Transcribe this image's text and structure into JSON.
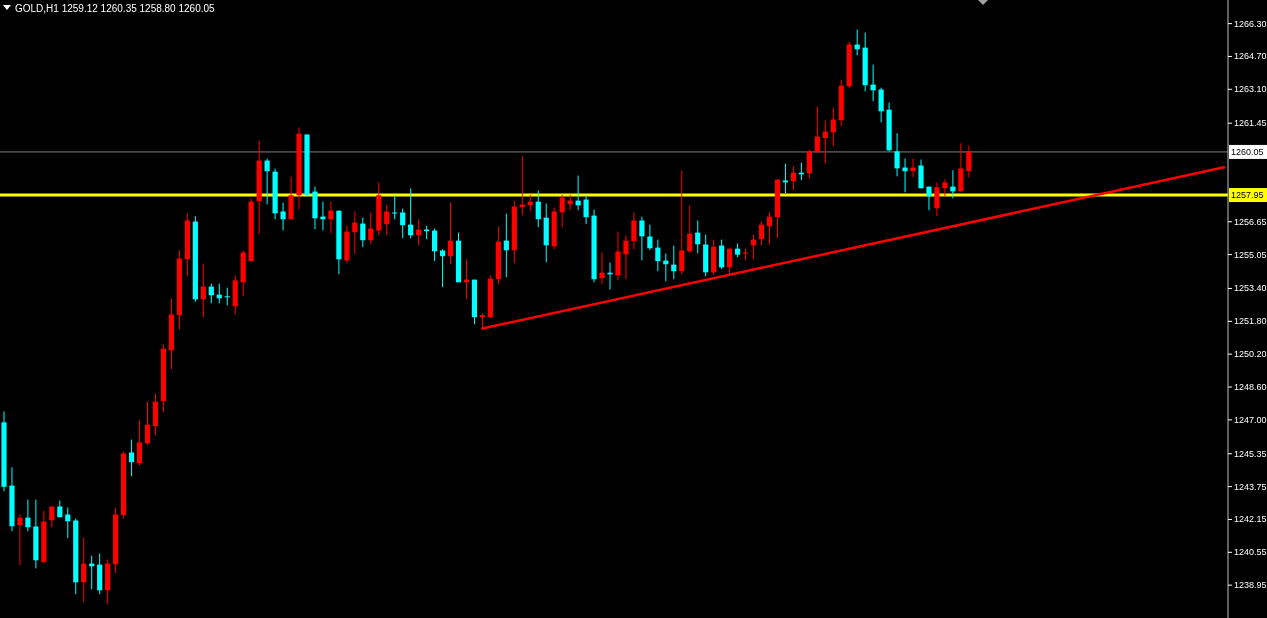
{
  "chart_data": {
    "type": "candlestick",
    "title": "GOLD,H1  1259.12 1260.35 1258.80 1260.05",
    "categories": [
      null,
      null,
      null,
      null,
      null,
      null,
      null,
      null,
      null,
      null,
      null,
      null,
      null,
      null,
      null,
      null,
      null,
      null,
      null,
      null,
      null,
      null,
      null,
      null,
      null,
      null,
      null,
      null,
      null,
      null,
      null,
      null,
      null,
      null,
      null,
      null,
      null,
      null,
      null,
      null,
      null,
      null,
      null,
      null,
      null,
      null,
      null,
      null,
      null,
      null,
      null,
      null,
      null,
      null,
      null,
      null,
      null,
      null,
      null,
      null,
      null,
      null,
      null,
      null,
      null,
      null,
      null,
      null,
      null,
      null,
      null,
      null,
      null,
      null,
      null,
      null,
      null,
      null,
      null,
      null,
      null,
      null,
      null,
      null,
      null,
      null,
      null,
      null,
      null,
      null,
      null,
      null,
      null,
      null,
      null,
      null,
      null,
      null,
      null,
      null,
      null,
      null,
      null,
      null,
      null,
      null,
      null,
      null,
      null,
      null,
      null,
      null,
      null,
      null,
      null,
      null,
      null,
      null,
      null,
      null,
      null,
      null,
      null,
      null,
      null,
      null,
      null,
      null,
      null,
      null,
      null,
      null,
      null,
      null,
      null,
      null,
      null,
      null,
      null,
      null,
      null,
      null,
      null,
      null,
      null,
      null,
      null,
      null,
      null,
      null,
      null,
      null,
      null,
      null
    ],
    "ylim": [
      1237.35,
      1267.45
    ],
    "yticks": [
      {
        "value": 1266.3,
        "label": "1266.30"
      },
      {
        "value": 1264.7,
        "label": "1264.70"
      },
      {
        "value": 1263.1,
        "label": "1263.10"
      },
      {
        "value": 1261.45,
        "label": "1261.45"
      },
      {
        "value": 1256.65,
        "label": "1256.65"
      },
      {
        "value": 1255.05,
        "label": "1255.05"
      },
      {
        "value": 1253.4,
        "label": "1253.40"
      },
      {
        "value": 1251.8,
        "label": "1251.80"
      },
      {
        "value": 1250.2,
        "label": "1250.20"
      },
      {
        "value": 1248.6,
        "label": "1248.60"
      },
      {
        "value": 1247,
        "label": "1247.00"
      },
      {
        "value": 1245.35,
        "label": "1245.35"
      },
      {
        "value": 1243.75,
        "label": "1243.75"
      },
      {
        "value": 1242.15,
        "label": "1242.15"
      },
      {
        "value": 1240.55,
        "label": "1240.55"
      },
      {
        "value": 1238.95,
        "label": "1238.95"
      }
    ],
    "tick_labels": "y",
    "ref_lines": [
      {
        "axis": "y",
        "value": 1260.05,
        "label": "1260.05",
        "color": "#808080"
      },
      {
        "axis": "y",
        "value": 1257.95,
        "label": "1257.95",
        "color": "#ffff00"
      }
    ],
    "series": [
      {
        "colors": [
          "#00ffff",
          "#00ffff",
          "#ff0000",
          "#00ffff",
          "#00ffff",
          "#ff0000",
          "#ff0000",
          "#00ffff",
          "#00ffff",
          "#00ffff",
          "#ff0000",
          "#00ffff",
          "#00ffff",
          "#ff0000",
          "#ff0000",
          "#ff0000",
          "#00ffff",
          "#ff0000",
          "#ff0000",
          "#ff0000",
          "#ff0000",
          "#ff0000",
          "#ff0000",
          "#ff0000",
          "#00ffff",
          "#ff0000",
          "#00ffff",
          "#00ffff",
          "#00ffff",
          "#ff0000",
          "#ff0000",
          "#ff0000",
          "#ff0000",
          "#00ffff",
          "#00ffff",
          "#00ffff",
          "#ff0000",
          "#ff0000",
          "#00ffff",
          "#00ffff",
          "#00ffff",
          "#ff0000",
          "#00ffff",
          "#ff0000",
          "#ff0000",
          "#00ffff",
          "#ff0000",
          "#ff0000",
          "#ff0000",
          "#00ffff",
          "#00ffff",
          "#00ffff",
          "#ff0000",
          "#00ffff",
          "#00ffff",
          "#00ffff",
          "#ff0000",
          "#00ffff",
          "#ff0000",
          "#00ffff",
          "#ff0000",
          "#ff0000",
          "#ff0000",
          "#00ffff",
          "#ff0000",
          "#ff0000",
          "#ff0000",
          "#00ffff",
          "#00ffff",
          "#ff0000",
          "#ff0000",
          "#ff0000",
          "#00ffff",
          "#00ffff",
          "#00ffff",
          "#ff0000",
          "#00ffff",
          "#ff0000",
          "#ff0000",
          "#ff0000",
          "#00ffff",
          "#00ffff",
          "#00ffff",
          "#00ffff",
          "#00ffff",
          "#ff0000",
          "#ff0000",
          "#00ffff",
          "#00ffff",
          "#ff0000",
          "#00ffff",
          "#ff0000",
          "#00ffff",
          "#ff0000",
          "#ff0000",
          "#ff0000",
          "#ff0000",
          "#ff0000",
          "#00ffff",
          "#ff0000",
          "#00ffff",
          "#ff0000",
          "#ff0000",
          "#ff0000",
          "#ff0000",
          "#ff0000",
          "#ff0000",
          "#00ffff",
          "#00ffff",
          "#00ffff",
          "#00ffff",
          "#00ffff",
          "#00ffff",
          "#00ffff",
          "#ff0000",
          "#00ffff",
          "#00ffff",
          "#ff0000",
          "#ff0000",
          "#00ffff",
          "#ff0000",
          "#ff0000",
          null,
          null,
          null,
          null,
          null,
          null,
          null,
          null,
          null,
          null,
          null,
          null,
          null,
          null,
          null,
          null,
          null,
          null,
          null,
          null,
          null,
          null,
          null,
          null,
          null,
          null,
          null,
          null,
          null,
          null,
          null,
          null
        ],
        "ohlc": [
          [
            1246.88,
            1247.41,
            1243.52,
            1243.74
          ],
          [
            1243.8,
            1244.69,
            1241.58,
            1241.82
          ],
          [
            1241.87,
            1242.39,
            1239.92,
            1242.24
          ],
          [
            1242.24,
            1243.12,
            1241.58,
            1241.77
          ],
          [
            1241.81,
            1243.12,
            1239.77,
            1240.16
          ],
          [
            1240.07,
            1242.58,
            1240.02,
            1242.05
          ],
          [
            1242.11,
            1242.78,
            1241.77,
            1242.78
          ],
          [
            1242.78,
            1243.07,
            1242.26,
            1242.26
          ],
          [
            1242.39,
            1242.73,
            1241.24,
            1242.06
          ],
          [
            1242.1,
            1242.19,
            1238.51,
            1239.09
          ],
          [
            1239.09,
            1241.27,
            1238.12,
            1240.0
          ],
          [
            1240.0,
            1240.39,
            1238.75,
            1239.87
          ],
          [
            1239.95,
            1240.49,
            1238.51,
            1238.7
          ],
          [
            1238.7,
            1240.2,
            1238.02,
            1240.0
          ],
          [
            1239.97,
            1242.73,
            1239.53,
            1242.39
          ],
          [
            1242.36,
            1245.46,
            1242.21,
            1245.36
          ],
          [
            1245.41,
            1246.04,
            1244.25,
            1244.94
          ],
          [
            1244.89,
            1246.97,
            1244.79,
            1245.9
          ],
          [
            1245.86,
            1247.89,
            1245.8,
            1246.77
          ],
          [
            1246.69,
            1248.28,
            1246.25,
            1247.89
          ],
          [
            1247.91,
            1250.67,
            1247.37,
            1250.47
          ],
          [
            1250.39,
            1252.91,
            1249.47,
            1252.13
          ],
          [
            1252.1,
            1255.25,
            1251.41,
            1254.86
          ],
          [
            1254.82,
            1257.05,
            1253.99,
            1256.71
          ],
          [
            1256.66,
            1256.92,
            1252.75,
            1252.87
          ],
          [
            1252.87,
            1254.61,
            1252.0,
            1253.49
          ],
          [
            1253.49,
            1253.64,
            1252.68,
            1253.07
          ],
          [
            1253.1,
            1253.64,
            1252.68,
            1252.92
          ],
          [
            1253.02,
            1253.44,
            1252.58,
            1252.97
          ],
          [
            1252.53,
            1254.04,
            1252.14,
            1253.79
          ],
          [
            1253.7,
            1255.25,
            1253.02,
            1255.15
          ],
          [
            1254.73,
            1257.78,
            1254.68,
            1257.63
          ],
          [
            1257.65,
            1260.6,
            1256.04,
            1259.63
          ],
          [
            1259.63,
            1259.73,
            1257.5,
            1259.11
          ],
          [
            1259.09,
            1259.24,
            1256.77,
            1257.06
          ],
          [
            1257.15,
            1257.58,
            1256.23,
            1256.77
          ],
          [
            1256.77,
            1258.85,
            1256.77,
            1257.94
          ],
          [
            1257.94,
            1261.24,
            1257.26,
            1260.94
          ],
          [
            1260.9,
            1260.9,
            1257.9,
            1257.95
          ],
          [
            1258.12,
            1258.36,
            1256.28,
            1256.82
          ],
          [
            1256.9,
            1257.63,
            1256.23,
            1256.77
          ],
          [
            1256.77,
            1257.63,
            1256.09,
            1257.19
          ],
          [
            1257.19,
            1257.19,
            1254.09,
            1254.82
          ],
          [
            1254.77,
            1256.46,
            1254.63,
            1256.17
          ],
          [
            1256.14,
            1257.15,
            1255.07,
            1256.61
          ],
          [
            1256.56,
            1256.85,
            1255.41,
            1255.75
          ],
          [
            1255.75,
            1257.1,
            1255.55,
            1256.32
          ],
          [
            1256.23,
            1258.56,
            1255.99,
            1257.94
          ],
          [
            1256.53,
            1257.49,
            1255.99,
            1257.15
          ],
          [
            1257.1,
            1257.94,
            1256.77,
            1257.07
          ],
          [
            1257.1,
            1257.29,
            1255.85,
            1256.48
          ],
          [
            1256.51,
            1258.27,
            1255.85,
            1255.99
          ],
          [
            1255.99,
            1256.76,
            1255.5,
            1256.27
          ],
          [
            1256.27,
            1256.46,
            1255.8,
            1256.19
          ],
          [
            1256.22,
            1256.32,
            1254.73,
            1255.21
          ],
          [
            1255.25,
            1255.3,
            1253.46,
            1254.97
          ],
          [
            1254.97,
            1257.58,
            1254.58,
            1255.73
          ],
          [
            1255.73,
            1256.12,
            1253.7,
            1253.7
          ],
          [
            1253.7,
            1254.81,
            1252.87,
            1253.83
          ],
          [
            1253.83,
            1253.83,
            1251.66,
            1252.0
          ],
          [
            1252.0,
            1252.19,
            1251.36,
            1252.1
          ],
          [
            1252.0,
            1254.04,
            1251.95,
            1253.88
          ],
          [
            1253.85,
            1256.42,
            1253.61,
            1255.68
          ],
          [
            1255.73,
            1257.05,
            1253.95,
            1255.26
          ],
          [
            1255.26,
            1257.68,
            1254.63,
            1257.39
          ],
          [
            1257.36,
            1259.87,
            1256.97,
            1257.49
          ],
          [
            1257.45,
            1257.97,
            1257.16,
            1257.63
          ],
          [
            1257.63,
            1258.17,
            1256.38,
            1256.77
          ],
          [
            1256.85,
            1257.54,
            1254.68,
            1255.5
          ],
          [
            1255.46,
            1257.34,
            1255.31,
            1257.15
          ],
          [
            1257.11,
            1257.97,
            1256.38,
            1257.83
          ],
          [
            1257.5,
            1257.97,
            1257.21,
            1257.68
          ],
          [
            1257.68,
            1258.9,
            1257.21,
            1257.45
          ],
          [
            1257.73,
            1257.97,
            1256.53,
            1256.87
          ],
          [
            1256.95,
            1257.24,
            1253.7,
            1253.85
          ],
          [
            1253.9,
            1255.15,
            1253.61,
            1254.17
          ],
          [
            1254.17,
            1254.66,
            1253.35,
            1254.09
          ],
          [
            1254.04,
            1256.17,
            1253.8,
            1255.2
          ],
          [
            1255.07,
            1255.98,
            1253.85,
            1255.73
          ],
          [
            1255.7,
            1257.1,
            1255.31,
            1256.71
          ],
          [
            1256.71,
            1256.9,
            1254.77,
            1255.94
          ],
          [
            1255.93,
            1256.51,
            1255.26,
            1255.36
          ],
          [
            1255.39,
            1255.78,
            1254.24,
            1254.73
          ],
          [
            1254.76,
            1255.1,
            1253.75,
            1254.58
          ],
          [
            1254.56,
            1255.49,
            1253.85,
            1254.24
          ],
          [
            1254.24,
            1259.14,
            1254.09,
            1255.25
          ],
          [
            1255.21,
            1257.44,
            1255.13,
            1256.07
          ],
          [
            1256.12,
            1256.71,
            1255.11,
            1255.55
          ],
          [
            1255.54,
            1256.03,
            1253.99,
            1254.19
          ],
          [
            1254.19,
            1255.78,
            1254.06,
            1255.44
          ],
          [
            1255.49,
            1255.78,
            1254.34,
            1254.43
          ],
          [
            1254.43,
            1255.34,
            1254.09,
            1255.34
          ],
          [
            1255.34,
            1255.59,
            1254.92,
            1255.05
          ],
          [
            1255.11,
            1255.34,
            1254.77,
            1255.15
          ],
          [
            1255.5,
            1256.03,
            1254.82,
            1255.78
          ],
          [
            1255.8,
            1256.66,
            1255.5,
            1256.51
          ],
          [
            1256.43,
            1257.1,
            1255.55,
            1256.9
          ],
          [
            1256.87,
            1258.7,
            1255.85,
            1258.7
          ],
          [
            1258.66,
            1259.48,
            1258.04,
            1258.57
          ],
          [
            1258.62,
            1259.34,
            1258.18,
            1259.04
          ],
          [
            1259.04,
            1259.53,
            1258.67,
            1258.96
          ],
          [
            1259.01,
            1260.16,
            1258.77,
            1260.07
          ],
          [
            1260.03,
            1262.26,
            1260.03,
            1260.8
          ],
          [
            1260.72,
            1261.58,
            1259.5,
            1261.04
          ],
          [
            1261.01,
            1262.21,
            1260.33,
            1261.63
          ],
          [
            1261.59,
            1263.57,
            1261.3,
            1263.28
          ],
          [
            1263.25,
            1265.42,
            1263.15,
            1265.28
          ],
          [
            1265.28,
            1266.01,
            1264.76,
            1265.05
          ],
          [
            1265.13,
            1265.86,
            1263.0,
            1263.3
          ],
          [
            1263.33,
            1264.3,
            1262.52,
            1263.05
          ],
          [
            1263.09,
            1263.18,
            1261.49,
            1262.03
          ],
          [
            1262.11,
            1262.45,
            1260.08,
            1260.13
          ],
          [
            1260.08,
            1260.96,
            1258.86,
            1259.25
          ],
          [
            1259.29,
            1259.73,
            1258.09,
            1259.11
          ],
          [
            1259.11,
            1259.73,
            1258.82,
            1259.29
          ],
          [
            1259.39,
            1259.68,
            1258.28,
            1258.28
          ],
          [
            1258.36,
            1258.36,
            1257.21,
            1257.89
          ],
          [
            1257.31,
            1258.57,
            1256.92,
            1258.33
          ],
          [
            1258.28,
            1258.72,
            1257.89,
            1258.56
          ],
          [
            1258.36,
            1259.16,
            1257.79,
            1258.13
          ],
          [
            1258.13,
            1260.47,
            1258.13,
            1259.24
          ],
          [
            1259.12,
            1260.35,
            1258.8,
            1260.05
          ],
          null,
          null,
          null,
          null,
          null,
          null,
          null,
          null,
          null,
          null,
          null,
          null,
          null,
          null,
          null,
          null,
          null,
          null,
          null,
          null,
          null,
          null,
          null,
          null,
          null,
          null,
          null,
          null,
          null,
          null,
          null,
          null
        ]
      },
      {
        "type": "line",
        "color": "#ff0000",
        "values": [
          null,
          null,
          null,
          null,
          null,
          null,
          null,
          null,
          null,
          null,
          null,
          null,
          null,
          null,
          null,
          null,
          null,
          null,
          null,
          null,
          null,
          null,
          null,
          null,
          null,
          null,
          null,
          null,
          null,
          null,
          null,
          null,
          null,
          null,
          null,
          null,
          null,
          null,
          null,
          null,
          null,
          null,
          null,
          null,
          null,
          null,
          null,
          null,
          null,
          null,
          null,
          null,
          null,
          null,
          null,
          null,
          null,
          null,
          null,
          null,
          1251.45,
          null,
          null,
          null,
          null,
          null,
          null,
          null,
          null,
          null,
          null,
          null,
          null,
          null,
          null,
          null,
          null,
          null,
          null,
          null,
          null,
          null,
          null,
          null,
          null,
          null,
          null,
          null,
          null,
          null,
          null,
          null,
          null,
          null,
          null,
          null,
          null,
          null,
          null,
          null,
          null,
          null,
          null,
          null,
          null,
          null,
          null,
          null,
          null,
          null,
          null,
          null,
          null,
          null,
          null,
          null,
          null,
          null,
          null,
          null,
          null,
          null,
          null,
          null,
          null,
          null,
          null,
          null,
          null,
          null,
          null,
          null,
          null,
          null,
          null,
          null,
          null,
          null,
          null,
          null,
          null,
          null,
          null,
          null,
          null,
          null,
          null,
          null,
          null,
          null,
          null,
          null,
          null,
          1259.3
        ]
      }
    ]
  }
}
